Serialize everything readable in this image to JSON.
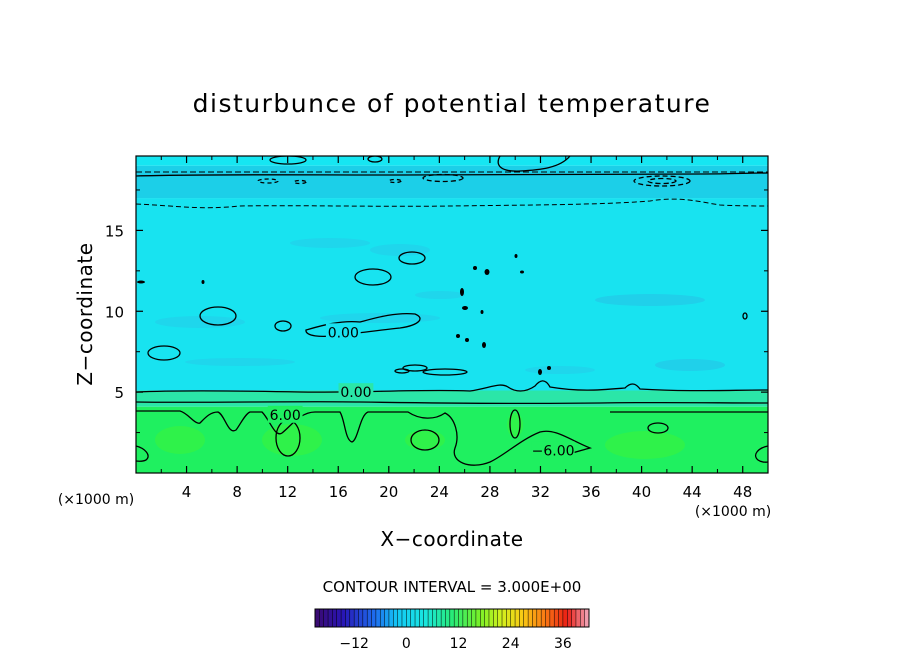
{
  "chart_data": {
    "type": "heatmap",
    "title": "disturbunce of potential temperature",
    "xlabel": "X−coordinate",
    "ylabel": "Z−coordinate",
    "x_unit_left": "(×1000 m)",
    "x_unit_right": "(×1000 m)",
    "xlim": [
      0,
      50
    ],
    "ylim": [
      0,
      19.6
    ],
    "xticks": [
      4,
      8,
      12,
      16,
      20,
      24,
      28,
      32,
      36,
      40,
      44,
      48
    ],
    "yticks": [
      5,
      10,
      15
    ],
    "contour_interval_text": "CONTOUR INTERVAL = 3.000E+00",
    "contour_labels": [
      {
        "text": "0.00",
        "x": 16.4,
        "y": 8.7
      },
      {
        "text": "0.00",
        "x": 17.4,
        "y": 5.0
      },
      {
        "text": "6.00",
        "x": 11.8,
        "y": 3.6
      },
      {
        "text": "−6.00",
        "x": 33.0,
        "y": 1.4
      }
    ],
    "field_bands": [
      {
        "z_from": 0,
        "z_to": 4.1,
        "level": 6,
        "color": "#1ff060"
      },
      {
        "z_from": 4.1,
        "z_to": 5.1,
        "level": 3,
        "color": "#2be6a8"
      },
      {
        "z_from": 5.1,
        "z_to": 17.0,
        "level": 0,
        "color": "#18e3f0"
      },
      {
        "z_from": 17.0,
        "z_to": 19.0,
        "level": -3,
        "color": "#1ccfe8"
      },
      {
        "z_from": 19.0,
        "z_to": 19.6,
        "level": 0,
        "color": "#16e6f2"
      }
    ],
    "colorbar": {
      "min": -21,
      "max": 42,
      "tick_values": [
        -12,
        0,
        12,
        24,
        36
      ],
      "tick_labels": [
        "−12",
        "0",
        "12",
        "24",
        "36"
      ]
    }
  }
}
